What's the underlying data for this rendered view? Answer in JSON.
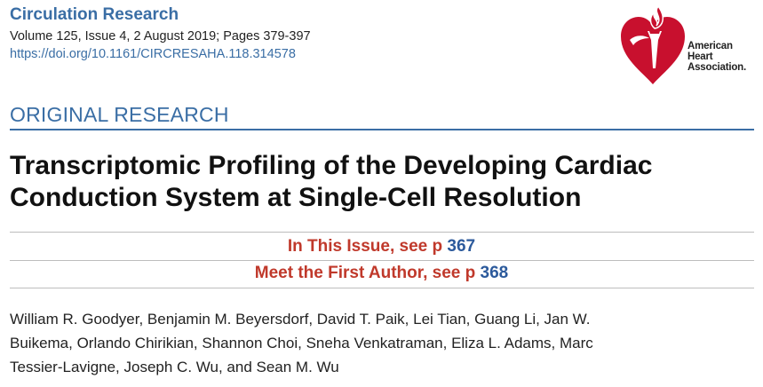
{
  "header": {
    "journal": "Circulation Research",
    "volume_line": "Volume 125, Issue 4, 2 August 2019; Pages 379-397",
    "doi": "https://doi.org/10.1161/CIRCRESAHA.118.314578"
  },
  "logo": {
    "icon": "heart-torch-icon",
    "lines": [
      "American",
      "Heart",
      "Association."
    ]
  },
  "article": {
    "section": "ORIGINAL RESEARCH",
    "title_lines": [
      "Transcriptomic Profiling of the Developing Cardiac",
      "Conduction System at Single-Cell Resolution"
    ],
    "in_this_issue": {
      "text": "In This Issue, see p",
      "page": "367"
    },
    "meet_author": {
      "text": "Meet the First Author, see p",
      "page": "368"
    },
    "author_lines": [
      "William R. Goodyer, Benjamin M. Beyersdorf, David T. Paik, Lei Tian, Guang Li, Jan W.",
      "Buikema, Orlando Chirikian, Shannon Choi, Sneha Venkatraman, Eliza L. Adams, Marc",
      "Tessier-Lavigne, Joseph C. Wu, and Sean M. Wu"
    ]
  },
  "colors": {
    "link_blue": "#3a6ea5",
    "aha_red": "#c8102e",
    "issue_red": "#c0392b",
    "page_blue": "#2c5a9c"
  }
}
